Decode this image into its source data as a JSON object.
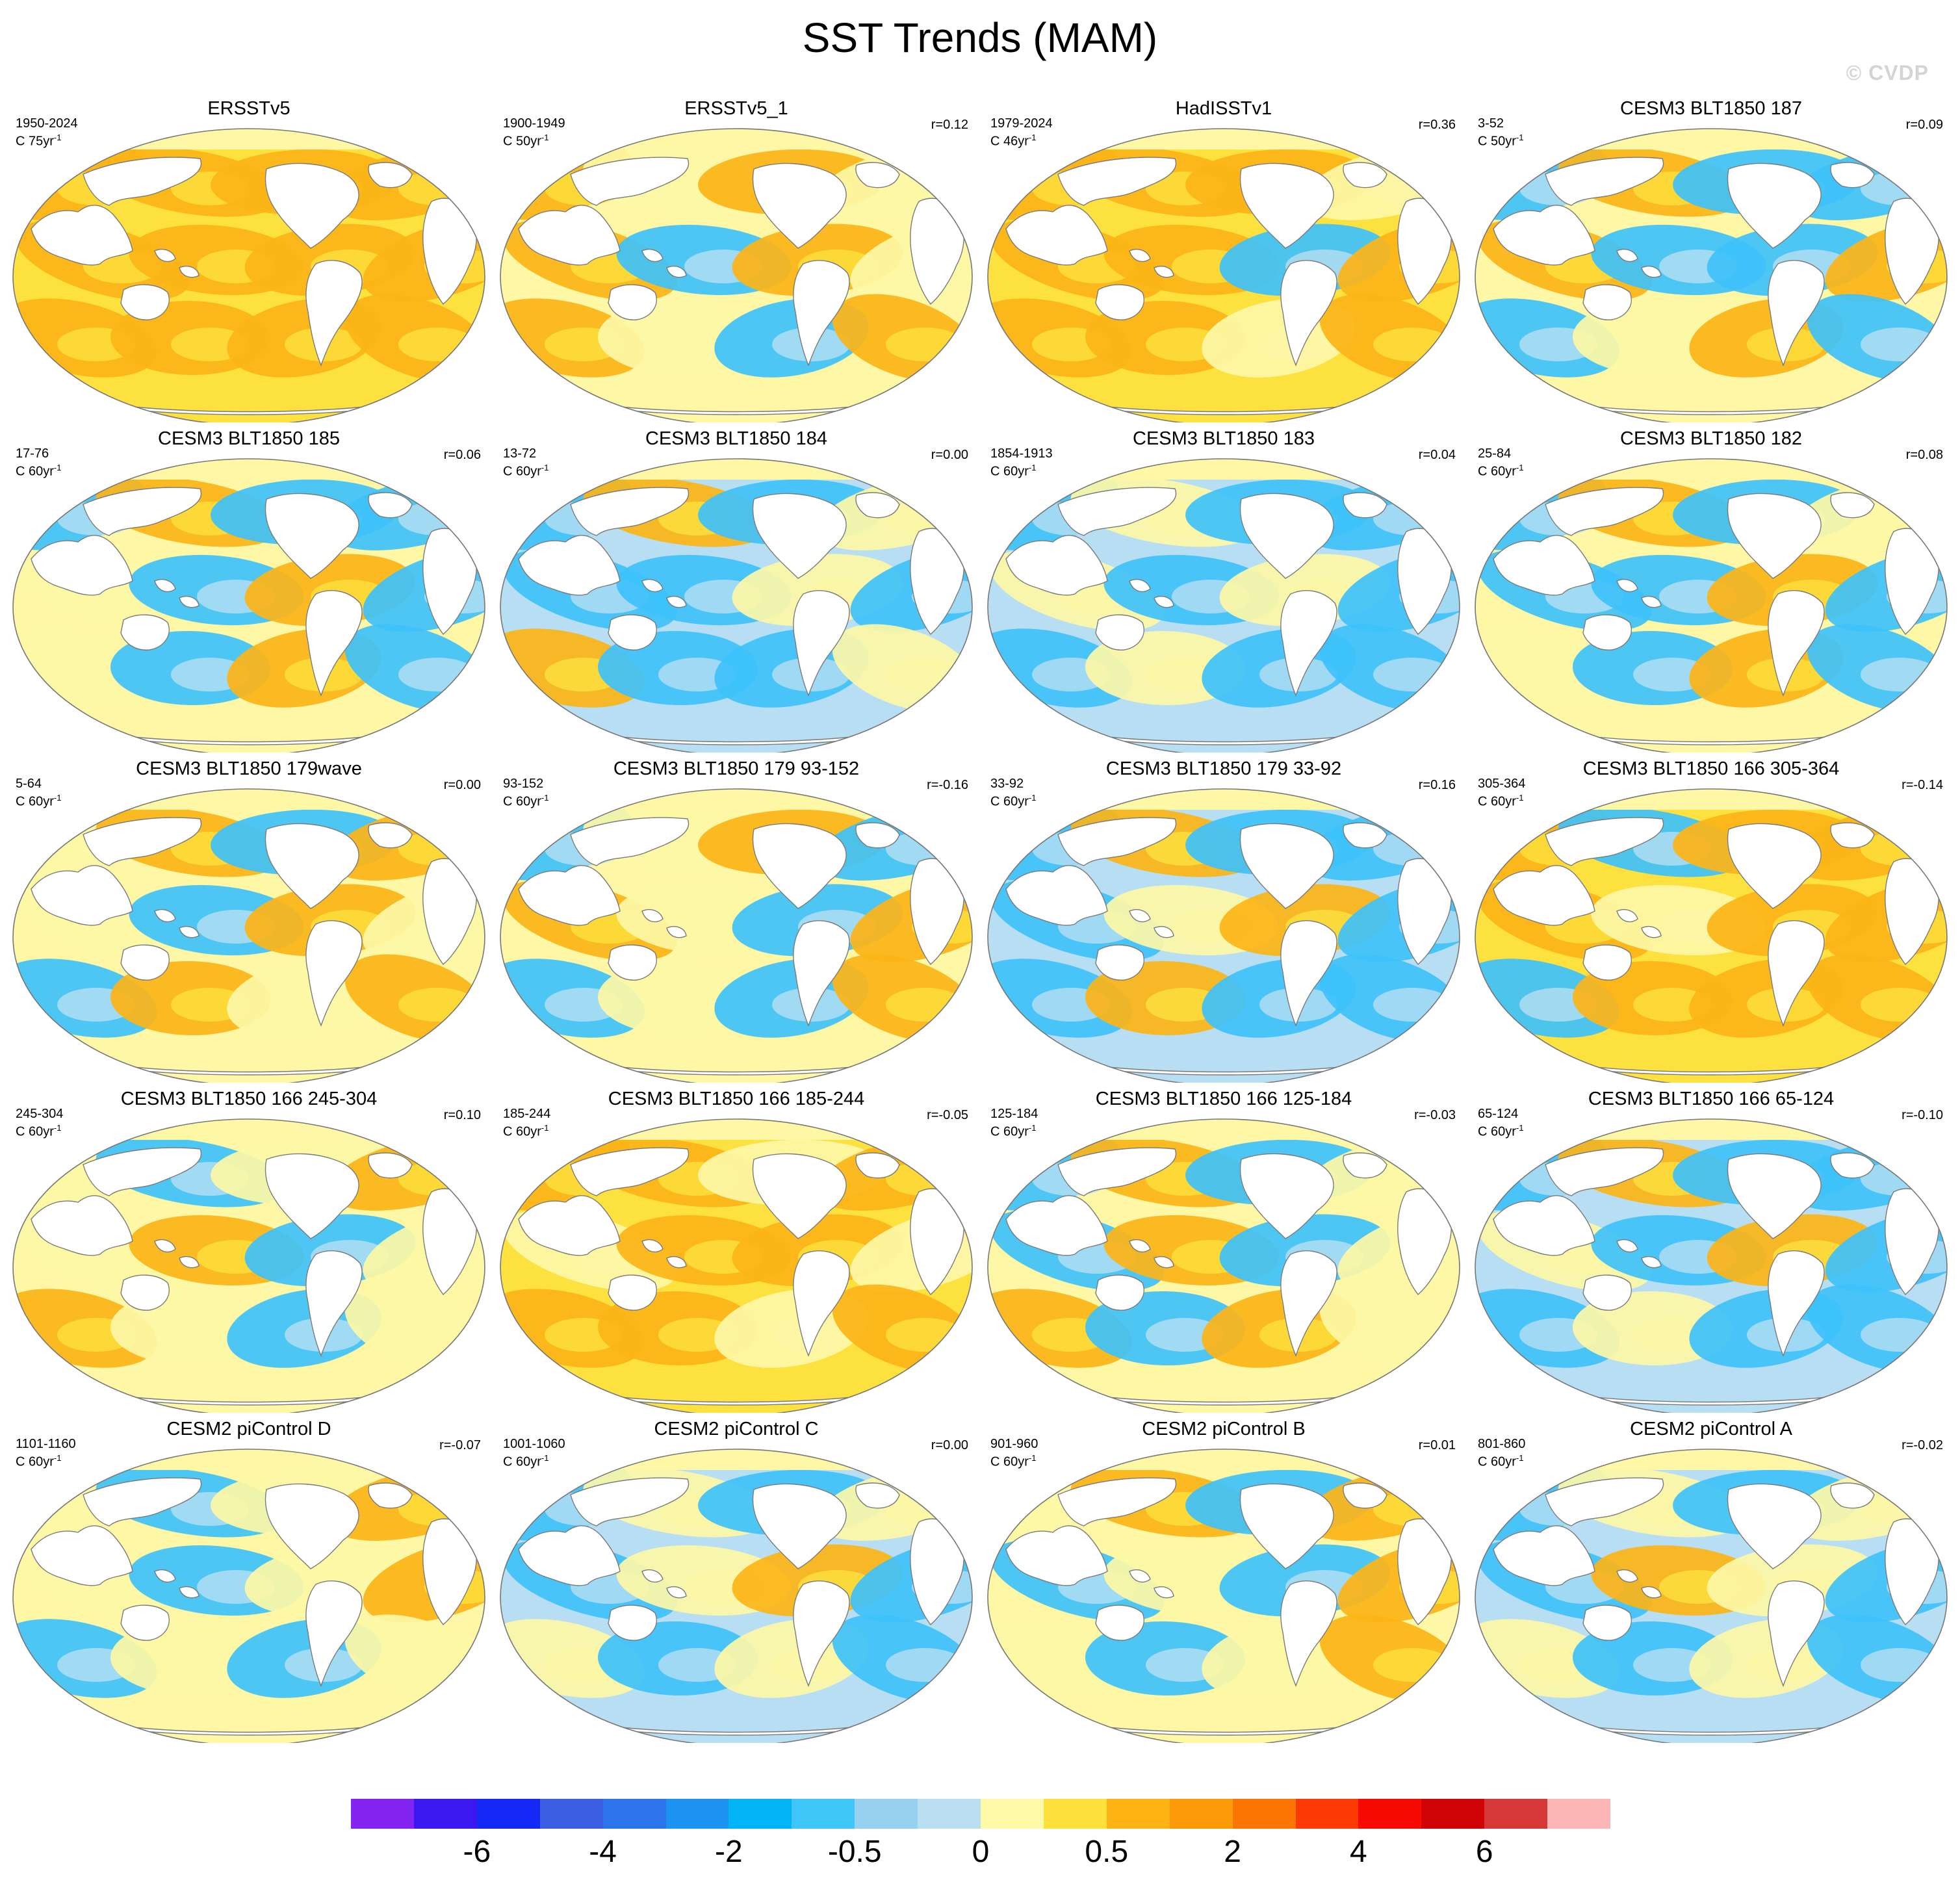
{
  "title": "SST Trends (MAM)",
  "watermark": "© CVDP",
  "panels": [
    {
      "title": "ERSSTv5",
      "years": "1950-2024",
      "rate": "C 75yr",
      "corr": "",
      "pattern": [
        1,
        1,
        1,
        1,
        1,
        1,
        1,
        1,
        1,
        1,
        1,
        1
      ]
    },
    {
      "title": "ERSSTv5_1",
      "years": "1900-1949",
      "rate": "C 50yr",
      "corr": "r=0.12",
      "pattern": [
        1,
        0,
        1,
        0,
        1,
        -1,
        1,
        0,
        1,
        0,
        -1,
        1
      ]
    },
    {
      "title": "HadISSTv1",
      "years": "1979-2024",
      "rate": "C 46yr",
      "corr": "r=0.36",
      "pattern": [
        1,
        1,
        1,
        0,
        1,
        1,
        -1,
        1,
        1,
        1,
        0,
        1
      ]
    },
    {
      "title": "CESM3 BLT1850 187",
      "years": "3-52",
      "rate": "C 50yr",
      "corr": "r=0.09",
      "pattern": [
        -1,
        1,
        -1,
        -1,
        1,
        -1,
        -1,
        1,
        -1,
        0,
        1,
        -1
      ]
    },
    {
      "title": "CESM3 BLT1850 185",
      "years": "17-76",
      "rate": "C 60yr",
      "corr": "r=0.06",
      "pattern": [
        -1,
        1,
        -1,
        -1,
        0,
        -1,
        1,
        -1,
        0,
        -1,
        1,
        -1
      ]
    },
    {
      "title": "CESM3 BLT1850 184",
      "years": "13-72",
      "rate": "C 60yr",
      "corr": "r=0.00",
      "pattern": [
        -1,
        1,
        -1,
        0,
        -1,
        -1,
        0,
        -1,
        1,
        -1,
        -1,
        0
      ]
    },
    {
      "title": "CESM3 BLT1850 183",
      "years": "1854-1913",
      "rate": "C 60yr",
      "corr": "r=0.04",
      "pattern": [
        -1,
        0,
        -1,
        -1,
        0,
        -1,
        0,
        -1,
        -1,
        0,
        -1,
        -1
      ]
    },
    {
      "title": "CESM3 BLT1850 182",
      "years": "25-84",
      "rate": "C 60yr",
      "corr": "r=0.08",
      "pattern": [
        -1,
        1,
        -1,
        0,
        -1,
        -1,
        1,
        -1,
        0,
        -1,
        1,
        -1
      ]
    },
    {
      "title": "CESM3 BLT1850 179wave",
      "years": "5-64",
      "rate": "C 60yr",
      "corr": "r=0.00",
      "pattern": [
        0,
        1,
        -1,
        1,
        0,
        -1,
        1,
        0,
        -1,
        1,
        0,
        1
      ]
    },
    {
      "title": "CESM3 BLT1850 179 93-152",
      "years": "93-152",
      "rate": "C 60yr",
      "corr": "r=-0.16",
      "pattern": [
        -1,
        0,
        1,
        -1,
        1,
        0,
        -1,
        1,
        -1,
        0,
        -1,
        1
      ]
    },
    {
      "title": "CESM3 BLT1850 179 33-92",
      "years": "33-92",
      "rate": "C 60yr",
      "corr": "r=0.16",
      "pattern": [
        -1,
        1,
        -1,
        -1,
        -1,
        0,
        1,
        -1,
        -1,
        1,
        -1,
        -1
      ]
    },
    {
      "title": "CESM3 BLT1850 166 305-364",
      "years": "305-364",
      "rate": "C 60yr",
      "corr": "r=-0.14",
      "pattern": [
        1,
        -1,
        1,
        1,
        1,
        0,
        1,
        1,
        -1,
        1,
        1,
        1
      ]
    },
    {
      "title": "CESM3 BLT1850 166 245-304",
      "years": "245-304",
      "rate": "C 60yr",
      "corr": "r=0.10",
      "pattern": [
        0,
        -1,
        0,
        1,
        0,
        1,
        -1,
        0,
        1,
        0,
        -1,
        0
      ]
    },
    {
      "title": "CESM3 BLT1850 166 185-244",
      "years": "185-244",
      "rate": "C 60yr",
      "corr": "r=-0.05",
      "pattern": [
        1,
        1,
        0,
        1,
        0,
        1,
        1,
        0,
        1,
        1,
        0,
        1
      ]
    },
    {
      "title": "CESM3 BLT1850 166 125-184",
      "years": "125-184",
      "rate": "C 60yr",
      "corr": "r=-0.03",
      "pattern": [
        -1,
        1,
        -1,
        0,
        -1,
        1,
        -1,
        0,
        1,
        -1,
        1,
        0
      ]
    },
    {
      "title": "CESM3 BLT1850 166 65-124",
      "years": "65-124",
      "rate": "C 60yr",
      "corr": "r=-0.10",
      "pattern": [
        -1,
        1,
        -1,
        -1,
        0,
        -1,
        1,
        -1,
        -1,
        0,
        -1,
        -1
      ]
    },
    {
      "title": "CESM2 piControl D",
      "years": "1101-1160",
      "rate": "C 60yr",
      "corr": "r=-0.07",
      "pattern": [
        0,
        -1,
        0,
        1,
        0,
        -1,
        0,
        1,
        -1,
        0,
        -1,
        0
      ]
    },
    {
      "title": "CESM2 piControl C",
      "years": "1001-1060",
      "rate": "C 60yr",
      "corr": "r=0.00",
      "pattern": [
        -1,
        0,
        -1,
        0,
        -1,
        0,
        1,
        -1,
        0,
        -1,
        0,
        -1
      ]
    },
    {
      "title": "CESM2 piControl B",
      "years": "901-960",
      "rate": "C 60yr",
      "corr": "r=0.01",
      "pattern": [
        0,
        1,
        -1,
        1,
        -1,
        0,
        -1,
        1,
        0,
        -1,
        0,
        1
      ]
    },
    {
      "title": "CESM2 piControl A",
      "years": "801-860",
      "rate": "C 60yr",
      "corr": "r=-0.02",
      "pattern": [
        -1,
        0,
        -1,
        0,
        -1,
        1,
        0,
        -1,
        0,
        -1,
        0,
        -1
      ]
    }
  ],
  "rate_superscript": "-1",
  "colors": {
    "neg_strong": "#3ec1fa",
    "neg_weak": "#b7def3",
    "neutral": "#fdf7a6",
    "pos_weak": "#fde13f",
    "pos_strong": "#fcb417",
    "land": "#ffffff",
    "coast": "#7a7a7a",
    "frame": "#777777"
  },
  "colorbar": {
    "colors": [
      "#8424f0",
      "#3c18f0",
      "#1428f6",
      "#3c5ee0",
      "#2c74ea",
      "#1c93f2",
      "#00b4f6",
      "#40c5f8",
      "#96d1f0",
      "#badff2",
      "#fefaa8",
      "#fee03c",
      "#fdb414",
      "#fc9a0a",
      "#fc7402",
      "#fc3a04",
      "#f80a04",
      "#d00404",
      "#d63838",
      "#fcb6b6"
    ],
    "labels": [
      "-6",
      "-4",
      "-2",
      "-0.5",
      "0",
      "0.5",
      "2",
      "4",
      "6"
    ]
  }
}
